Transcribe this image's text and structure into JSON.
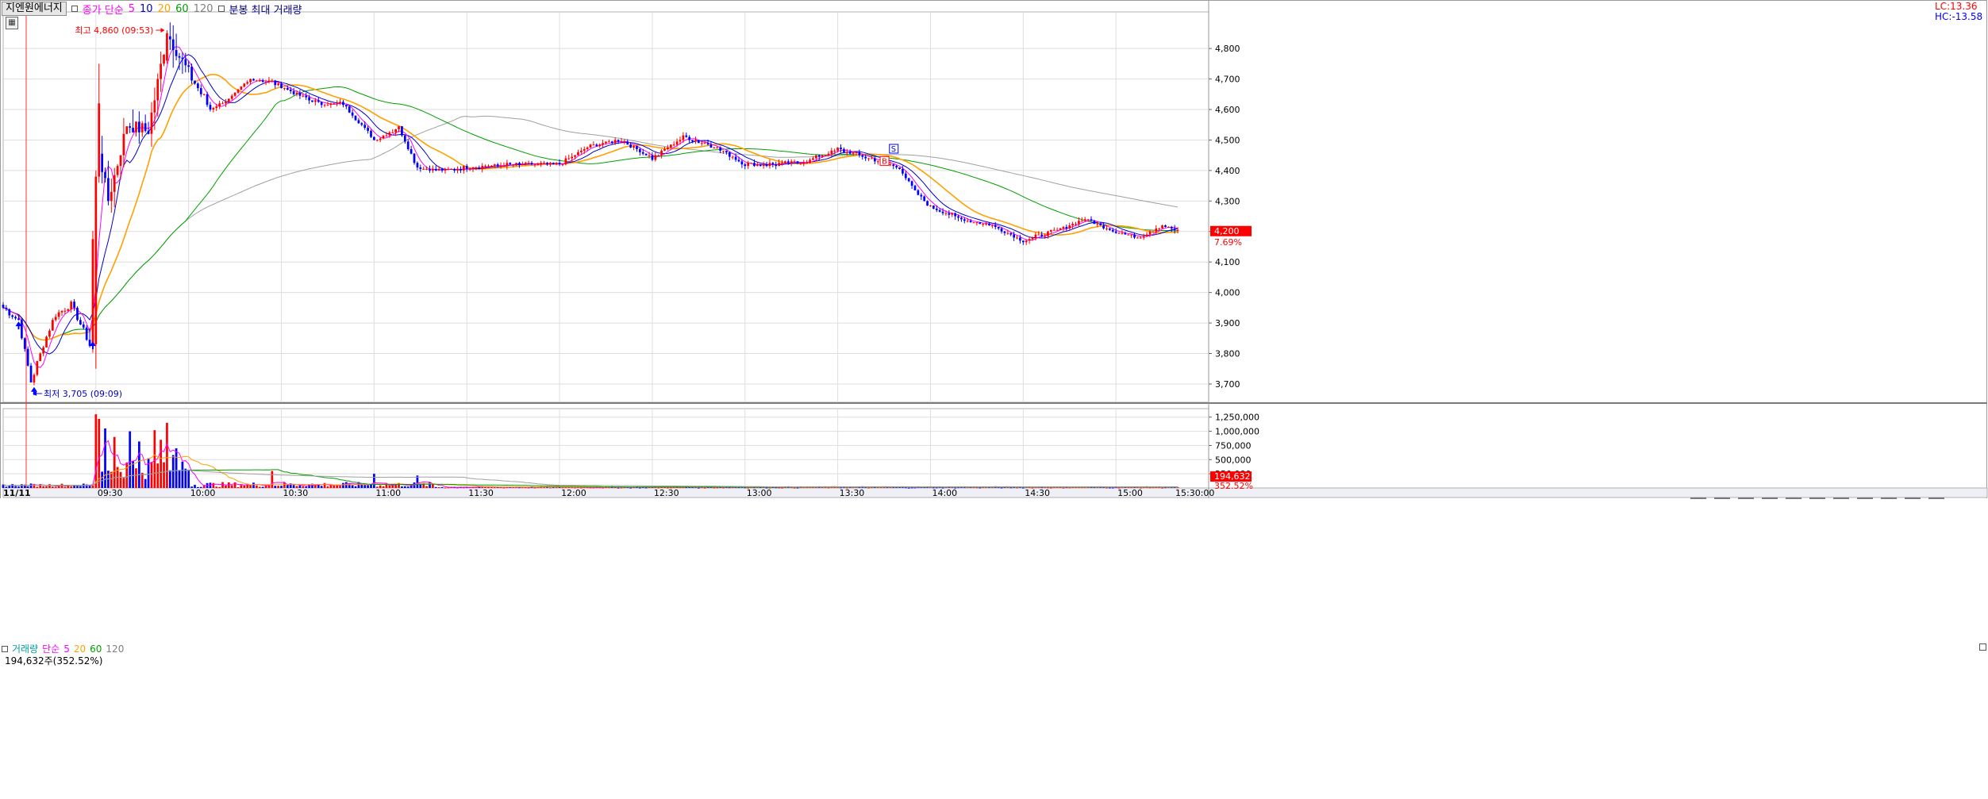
{
  "window": {
    "stock_tab": "지엔원에너지",
    "ma_label": "종가 단순",
    "periods": [
      "5",
      "10",
      "20",
      "60",
      "120"
    ],
    "mode_label": "분봉 최대 거래량"
  },
  "volume_panel": {
    "label_vol": "거래량",
    "label_ma": "단순",
    "periods": [
      "5",
      "20",
      "60",
      "120"
    ],
    "readout": "194,632주(352.52%)"
  },
  "lc_hc": {
    "lc": "LC:13.36",
    "hc": "HC:-13.58"
  },
  "colors": {
    "up": "#ff0000",
    "down": "#0000ff",
    "ma5": "#ff00ff",
    "ma10": "#0000cc",
    "ma20": "#ffa000",
    "ma60": "#00a000",
    "ma120": "#a0a0a0",
    "current_price_bg": "#ff0000"
  },
  "chart_data": {
    "type": "candlestick",
    "price_axis": {
      "ylim": [
        3640,
        4920
      ],
      "ticks": [
        3700,
        3800,
        3900,
        4000,
        4100,
        4200,
        4300,
        4400,
        4500,
        4600,
        4700,
        4800
      ],
      "tick_labels": [
        "3,700",
        "3,800",
        "3,900",
        "4,000",
        "4,100",
        "4,200",
        "4,300",
        "4,400",
        "4,500",
        "4,600",
        "4,700",
        "4,800"
      ]
    },
    "volume_axis": {
      "ylim": [
        0,
        1400000
      ],
      "ticks": [
        250000,
        500000,
        750000,
        1000000,
        1250000
      ],
      "tick_labels": [
        "250,000",
        "500,000",
        "750,000",
        "1,000,000",
        "1,250,000"
      ]
    },
    "x_axis": {
      "range": [
        "09:00",
        "15:30"
      ],
      "ticks": [
        "09:00",
        "09:30",
        "10:00",
        "10:30",
        "11:00",
        "11:30",
        "12:00",
        "12:30",
        "13:00",
        "13:30",
        "14:00",
        "14:30",
        "15:00",
        "15:30"
      ],
      "tick_labels": [
        "11/11",
        "09:30",
        "10:00",
        "10:30",
        "11:00",
        "11:30",
        "12:00",
        "12:30",
        "13:00",
        "13:30",
        "14:00",
        "14:30",
        "15:00",
        "15:30:00"
      ]
    },
    "anchors": [
      [
        "09:00",
        3950
      ],
      [
        "09:05",
        3910
      ],
      [
        "09:09",
        3705
      ],
      [
        "09:13",
        3830
      ],
      [
        "09:17",
        3930
      ],
      [
        "09:22",
        3960
      ],
      [
        "09:28",
        3830
      ],
      [
        "09:30",
        4520
      ],
      [
        "09:34",
        4300
      ],
      [
        "09:40",
        4550
      ],
      [
        "09:47",
        4530
      ],
      [
        "09:53",
        4850
      ],
      [
        "10:00",
        4720
      ],
      [
        "10:07",
        4600
      ],
      [
        "10:14",
        4640
      ],
      [
        "10:20",
        4700
      ],
      [
        "10:27",
        4690
      ],
      [
        "10:35",
        4650
      ],
      [
        "10:42",
        4620
      ],
      [
        "10:50",
        4620
      ],
      [
        "11:00",
        4500
      ],
      [
        "11:08",
        4540
      ],
      [
        "11:14",
        4410
      ],
      [
        "11:22",
        4400
      ],
      [
        "11:30",
        4410
      ],
      [
        "11:45",
        4420
      ],
      [
        "12:00",
        4420
      ],
      [
        "12:10",
        4480
      ],
      [
        "12:20",
        4500
      ],
      [
        "12:30",
        4440
      ],
      [
        "12:40",
        4510
      ],
      [
        "12:50",
        4480
      ],
      [
        "13:00",
        4420
      ],
      [
        "13:10",
        4420
      ],
      [
        "13:20",
        4430
      ],
      [
        "13:30",
        4470
      ],
      [
        "13:40",
        4440
      ],
      [
        "13:50",
        4410
      ],
      [
        "13:55",
        4330
      ],
      [
        "14:00",
        4280
      ],
      [
        "14:10",
        4240
      ],
      [
        "14:20",
        4220
      ],
      [
        "14:30",
        4170
      ],
      [
        "14:40",
        4200
      ],
      [
        "14:50",
        4240
      ],
      [
        "15:00",
        4200
      ],
      [
        "15:07",
        4180
      ],
      [
        "15:15",
        4220
      ],
      [
        "15:20",
        4200
      ]
    ],
    "volume_spikes": [
      [
        "09:30",
        1300000
      ],
      [
        "09:31",
        1220000
      ],
      [
        "09:33",
        1050000
      ],
      [
        "09:36",
        900000
      ],
      [
        "09:41",
        1000000
      ],
      [
        "09:44",
        820000
      ],
      [
        "09:49",
        1020000
      ],
      [
        "09:51",
        850000
      ],
      [
        "09:53",
        1150000
      ],
      [
        "09:56",
        700000
      ],
      [
        "10:27",
        300000
      ],
      [
        "11:00",
        250000
      ],
      [
        "11:14",
        220000
      ]
    ],
    "annotations": {
      "high_label": "최고 4,860 (09:53)",
      "high_value": 4860,
      "low_label": "최저 3,705 (09:09)",
      "low_value": 3705,
      "current_price": "4,200",
      "current_change": "7.69%",
      "current_vol": "194,632",
      "current_vol_pct": "352.52%",
      "signal_s": "S",
      "signal_b": "B"
    }
  }
}
